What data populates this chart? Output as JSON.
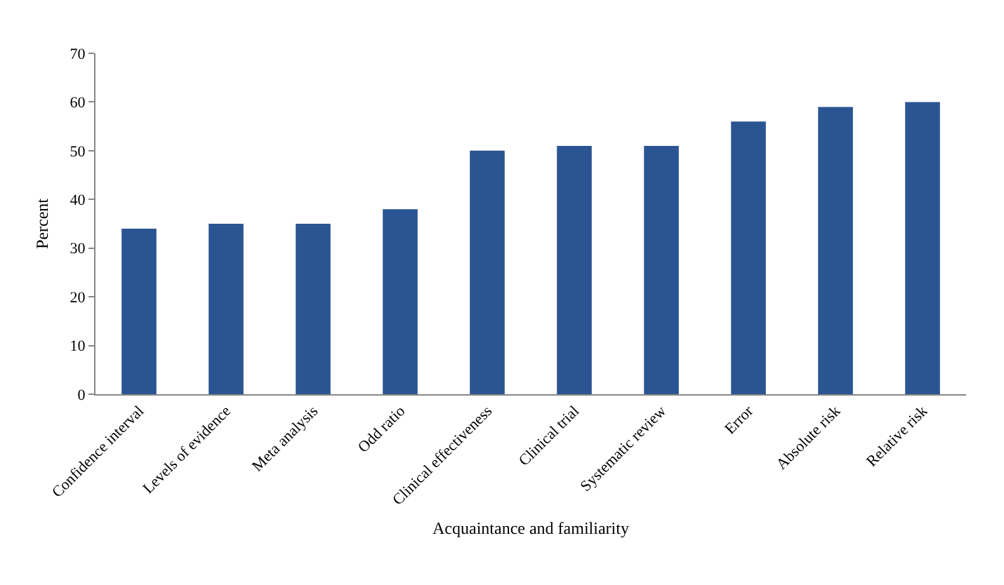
{
  "chart_data": {
    "type": "bar",
    "xlabel": "Acquaintance and familiarity",
    "ylabel": "Percent",
    "categories": [
      "Confidence interval",
      "Levels of evidence",
      "Meta analysis",
      "Odd ratio",
      "Clinical effectiveness",
      "Clinical trial",
      "Systematic review",
      "Error",
      "Absolute risk",
      "Relative risk"
    ],
    "values": [
      34,
      35,
      35,
      38,
      50,
      51,
      51,
      56,
      59,
      60
    ],
    "color": "#2b5592",
    "ylim": [
      0,
      70
    ],
    "yticks": [
      0,
      10,
      20,
      30,
      40,
      50,
      60,
      70
    ]
  }
}
